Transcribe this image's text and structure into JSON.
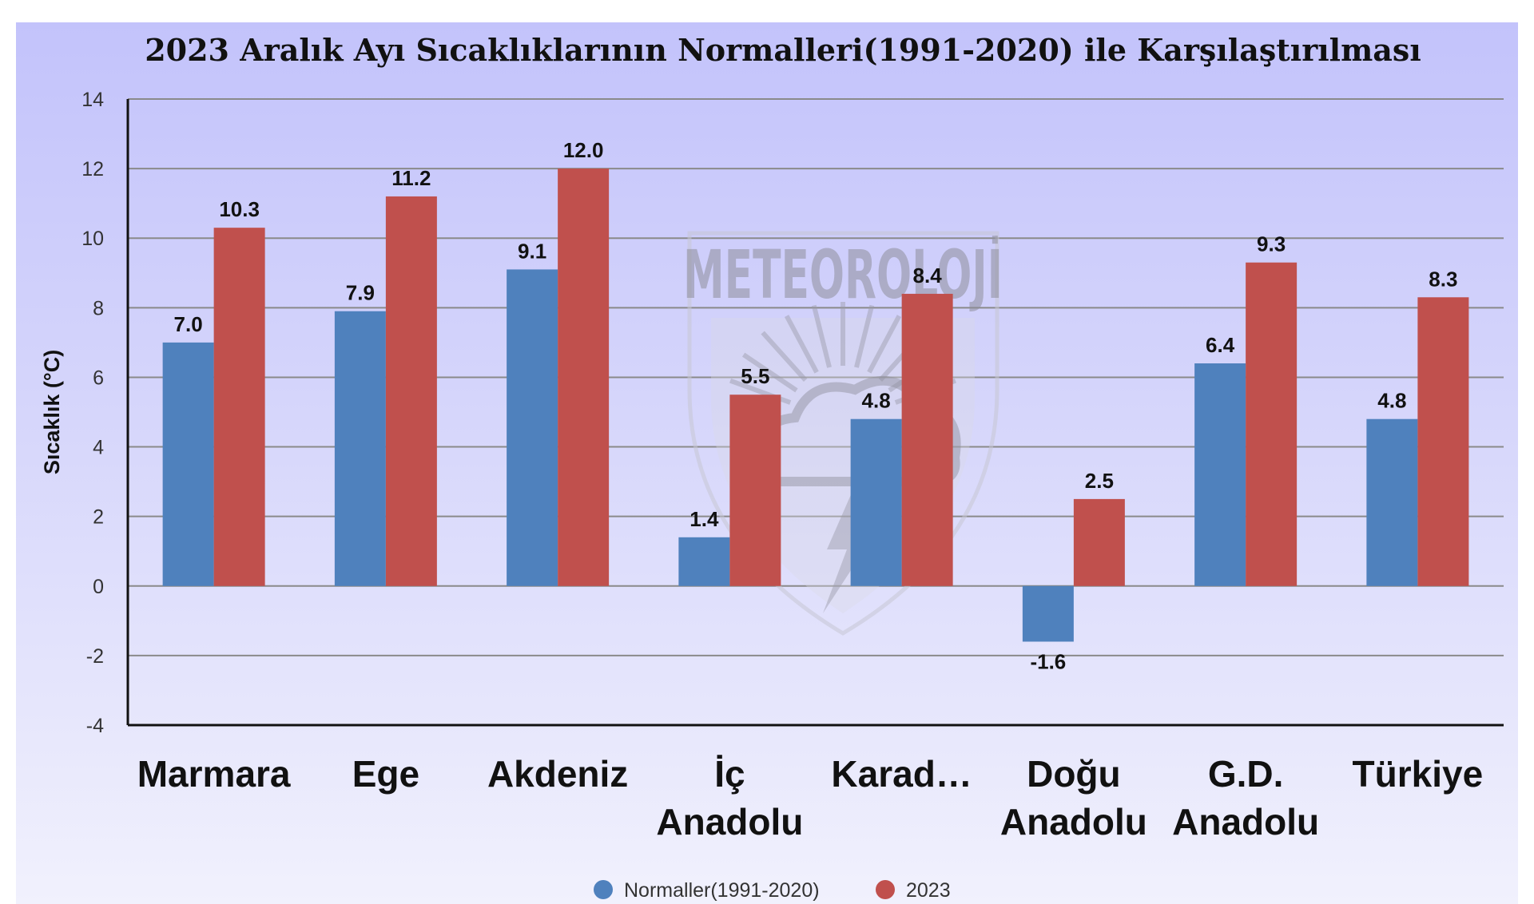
{
  "chart_data": {
    "type": "bar",
    "title": "2023 Aralık Ayı Sıcaklıklarının Normalleri(1991-2020) ile Karşılaştırılması",
    "ylabel": "Sıcaklık (°C)",
    "xlabel": "",
    "ylim": [
      -4,
      14
    ],
    "ytick_step": 2,
    "grid": true,
    "legend_position": "bottom",
    "categories": [
      "Marmara",
      "Ege",
      "Akdeniz",
      "İç Anadolu",
      "Karad…",
      "Doğu Anadolu",
      "G.D. Anadolu",
      "Türkiye"
    ],
    "series": [
      {
        "name": "Normaller(1991-2020)",
        "color": "#4f81bd",
        "values": [
          7.0,
          7.9,
          9.1,
          1.4,
          4.8,
          -1.6,
          6.4,
          4.8
        ]
      },
      {
        "name": "2023",
        "color": "#c0504d",
        "values": [
          10.3,
          11.2,
          12.0,
          5.5,
          8.4,
          2.5,
          9.3,
          8.3
        ]
      }
    ]
  },
  "watermark": {
    "text": "METEOROLOJİ"
  }
}
